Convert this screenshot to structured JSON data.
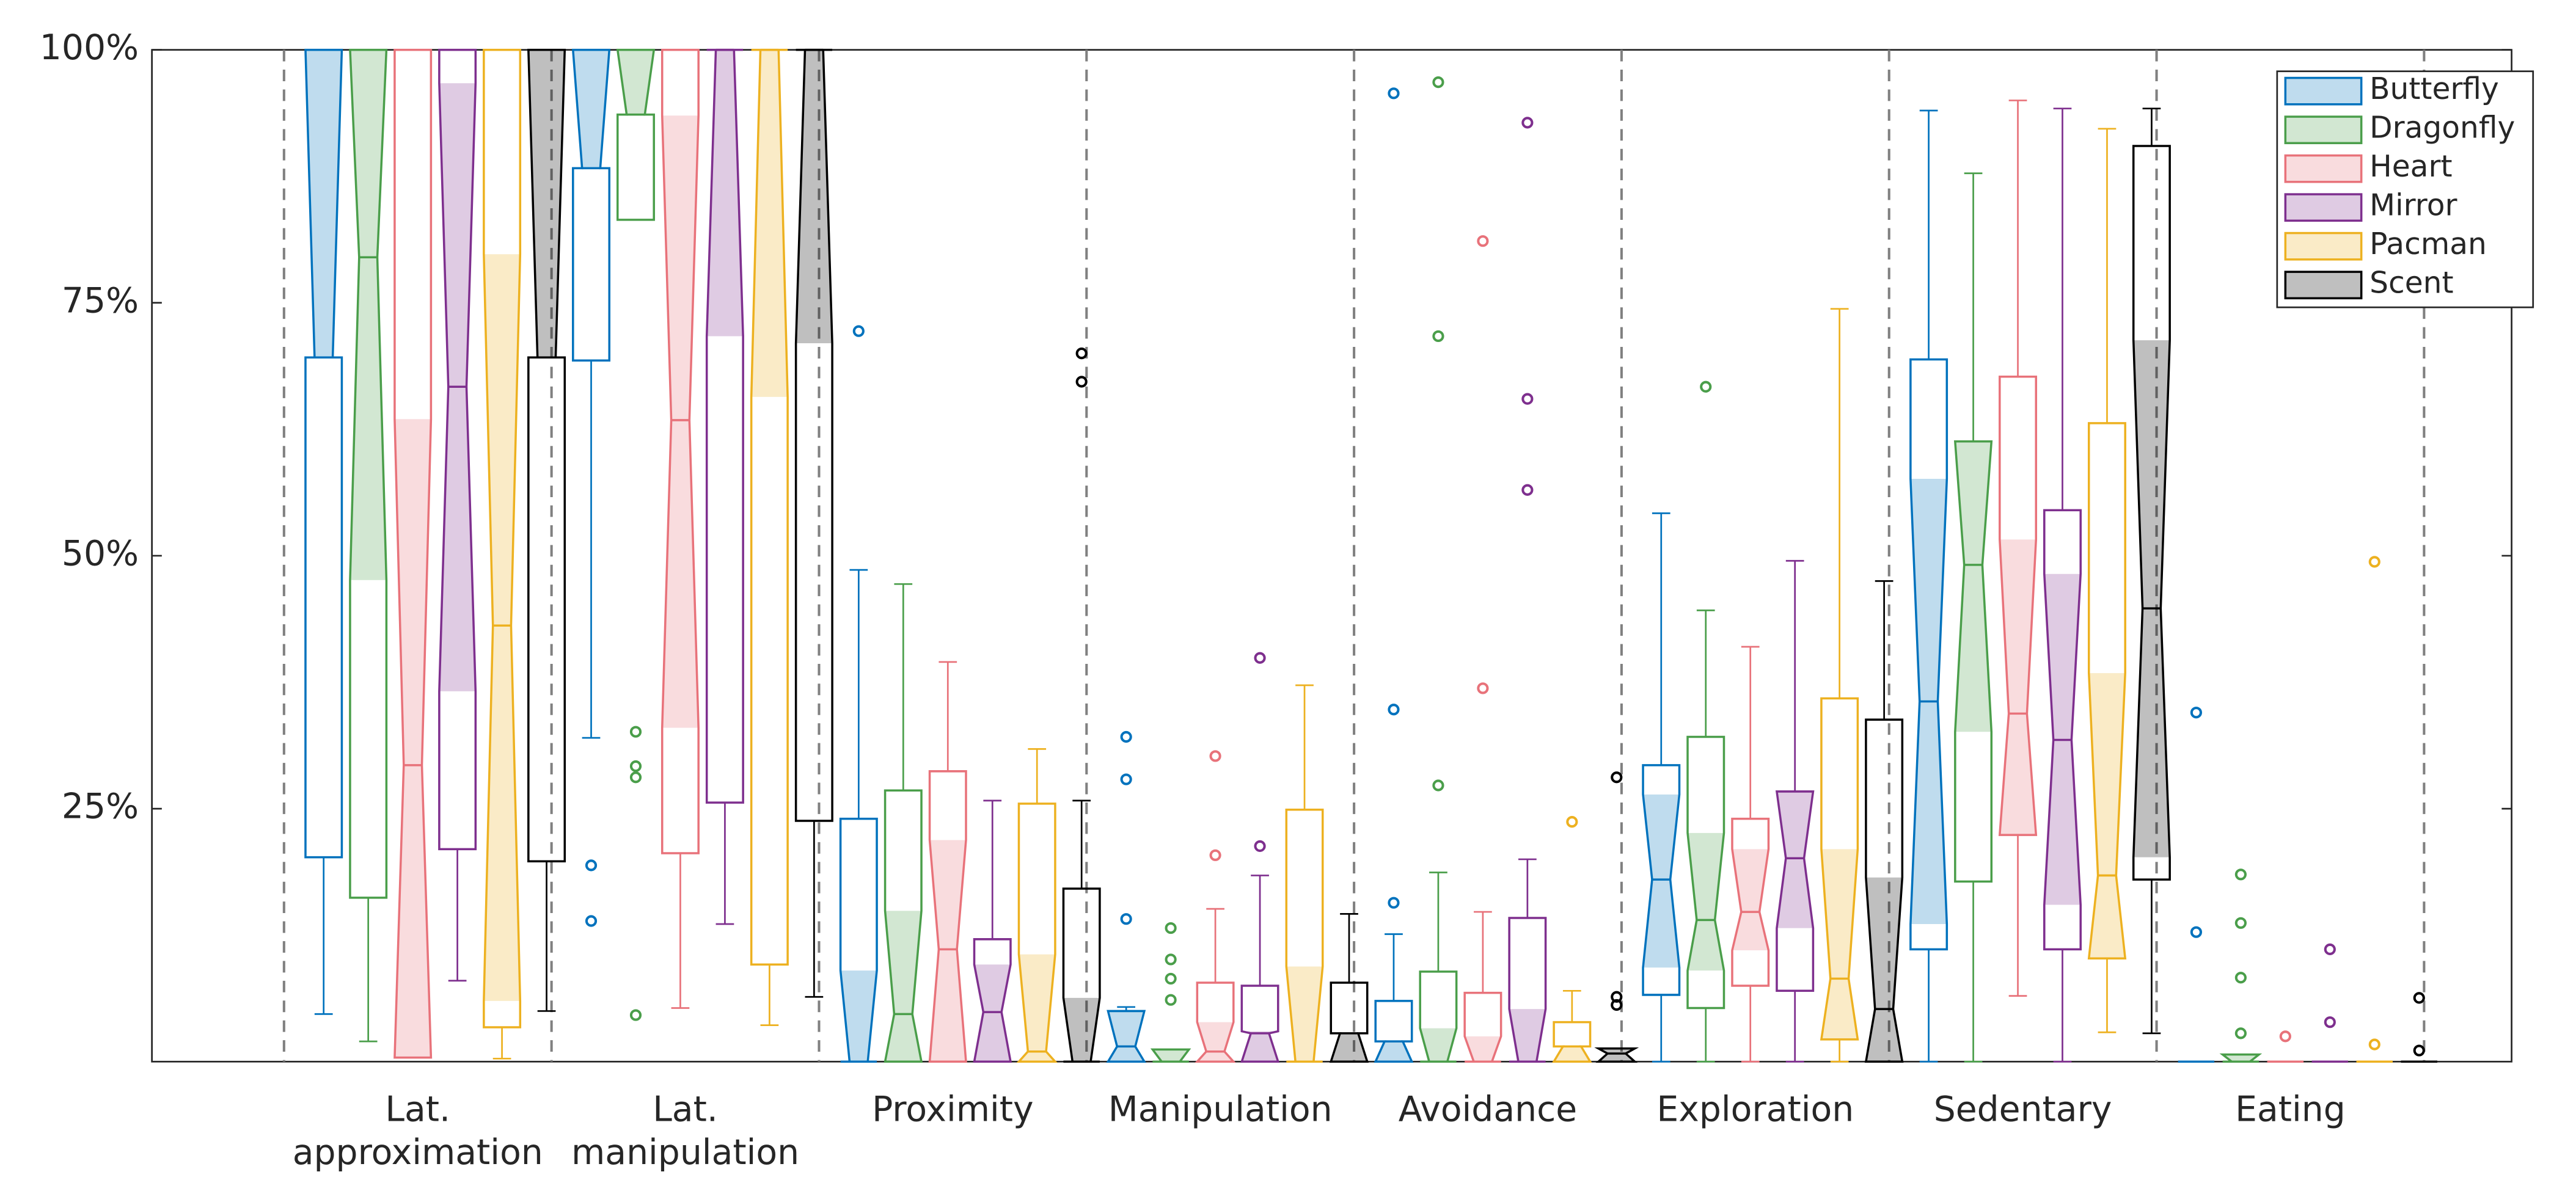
{
  "chart_data": {
    "type": "box",
    "categories": [
      "Lat. approximation",
      "Lat. manipulation",
      "Proximity",
      "Manipulation",
      "Avoidance",
      "Exploration",
      "Sedentary",
      "Eating"
    ],
    "ylim": [
      0,
      100
    ],
    "yticks": [
      {
        "value": 25,
        "label": "25%"
      },
      {
        "value": 50,
        "label": "50%"
      },
      {
        "value": 75,
        "label": "75%"
      },
      {
        "value": 100,
        "label": "100%"
      }
    ],
    "legend": "upper right",
    "series": [
      {
        "name": "Butterfly",
        "color": "#0072bd",
        "min": [
          4.7,
          32,
          0,
          0,
          0,
          0,
          0,
          0
        ],
        "q1": [
          20.2,
          69.3,
          0,
          0,
          0,
          6.6,
          11.1,
          0
        ],
        "median": [
          69.6,
          88.3,
          0,
          1.5,
          2,
          18,
          35.6,
          0
        ],
        "q3": [
          100,
          100,
          24,
          5,
          6,
          29.3,
          69.4,
          0
        ],
        "max": [
          100,
          100,
          48.6,
          5.4,
          12.6,
          54.2,
          94,
          0
        ],
        "notch_lo": [
          69.6,
          88.3,
          0,
          0,
          0,
          9.3,
          13.6,
          0
        ],
        "notch_hi": [
          100,
          100,
          9,
          5,
          2,
          26.4,
          57.6,
          0
        ],
        "outliers": [
          [],
          [
            19.4,
            13.9
          ],
          [
            72.2
          ],
          [
            32.1,
            27.9,
            14.1
          ],
          [
            95.7,
            34.8,
            15.7
          ],
          [],
          [],
          [
            34.5,
            12.8
          ]
        ]
      },
      {
        "name": "Dragonfly",
        "color": "#4a9e4a",
        "min": [
          2,
          83.2,
          0,
          0,
          0,
          0,
          0,
          0
        ],
        "q1": [
          16.2,
          83.2,
          0,
          0,
          0,
          5.3,
          17.8,
          0
        ],
        "median": [
          79.5,
          93.6,
          4.7,
          0,
          0,
          14,
          49.1,
          0
        ],
        "q3": [
          100,
          100,
          26.8,
          1.2,
          8.9,
          32.1,
          61.3,
          0.7
        ],
        "max": [
          100,
          100,
          47.2,
          1.2,
          18.7,
          44.6,
          87.8,
          0.7
        ],
        "notch_lo": [
          47.6,
          93.6,
          0,
          0,
          0,
          9,
          32.6,
          0
        ],
        "notch_hi": [
          100,
          100,
          14.9,
          1.2,
          3.3,
          22.6,
          65.6,
          0.7
        ],
        "outliers": [
          [],
          [
            32.6,
            29.2,
            28.1,
            4.6
          ],
          [],
          [
            13.2,
            10.1,
            8.2,
            6.1
          ],
          [
            96.8,
            71.7,
            27.3
          ],
          [
            66.7
          ],
          [],
          [
            18.5,
            13.7,
            8.3,
            2.8
          ]
        ]
      },
      {
        "name": "Heart",
        "color": "#e8727a",
        "min": [
          0.4,
          5.3,
          0,
          0,
          0,
          0,
          6.5,
          0
        ],
        "q1": [
          0.4,
          20.6,
          0,
          0,
          0,
          7.5,
          22.4,
          0
        ],
        "median": [
          29.3,
          63.4,
          11.1,
          1,
          0,
          14.8,
          34.4,
          0
        ],
        "q3": [
          100,
          100,
          28.7,
          7.8,
          6.8,
          24,
          67.7,
          0
        ],
        "max": [
          100,
          100,
          39.5,
          15.1,
          14.8,
          41,
          95,
          0
        ],
        "notch_lo": [
          0,
          33,
          0,
          0,
          0,
          11,
          17.1,
          0
        ],
        "notch_hi": [
          63.5,
          93.5,
          21.9,
          3.9,
          2.5,
          21,
          51.6,
          0
        ],
        "outliers": [
          [],
          [],
          [],
          [
            30.2,
            20.4
          ],
          [
            81.1,
            36.9
          ],
          [],
          [],
          [
            2.5
          ]
        ]
      },
      {
        "name": "Mirror",
        "color": "#7e2f8e",
        "min": [
          8,
          13.6,
          0,
          0,
          0,
          0,
          0,
          0
        ],
        "q1": [
          21,
          25.6,
          0,
          0,
          0,
          7,
          11.1,
          0
        ],
        "median": [
          66.7,
          100,
          4.9,
          2.8,
          0,
          20.1,
          31.8,
          0
        ],
        "q3": [
          100,
          100,
          12.1,
          7.5,
          14.2,
          26.7,
          54.5,
          0
        ],
        "max": [
          100,
          100,
          25.8,
          18.4,
          20,
          49.5,
          94.2,
          0
        ],
        "notch_lo": [
          36.6,
          71.7,
          0,
          0,
          0,
          13.2,
          15.5,
          0
        ],
        "notch_hi": [
          96.7,
          100,
          9.6,
          3,
          5.2,
          26.7,
          48.2,
          0
        ],
        "outliers": [
          [],
          [],
          [],
          [
            39.9,
            21.3
          ],
          [
            92.8,
            65.5,
            56.5
          ],
          [],
          [],
          [
            11.1,
            3.9
          ]
        ]
      },
      {
        "name": "Pacman",
        "color": "#edb120",
        "min": [
          0.3,
          3.6,
          0,
          0,
          0,
          0,
          2.9,
          0
        ],
        "q1": [
          3.4,
          9.6,
          0,
          0,
          0,
          2.2,
          10.2,
          0
        ],
        "median": [
          43.1,
          100,
          1,
          0,
          1.5,
          8.2,
          18.4,
          0
        ],
        "q3": [
          100,
          100,
          25.5,
          24.9,
          3.9,
          35.9,
          63.1,
          0
        ],
        "max": [
          100,
          100,
          30.9,
          37.2,
          7,
          74.4,
          92.2,
          0
        ],
        "notch_lo": [
          6,
          65.7,
          0,
          0,
          0,
          2.2,
          0,
          0
        ],
        "notch_hi": [
          79.8,
          100,
          10.6,
          9.4,
          1.5,
          21,
          38.4,
          0
        ],
        "outliers": [
          [],
          [],
          [],
          [],
          [
            23.7
          ],
          [],
          [],
          [
            49.4,
            1.7
          ]
        ]
      },
      {
        "name": "Scent",
        "color": "#000000",
        "min": [
          5,
          6.4,
          0,
          0,
          0,
          0,
          2.8,
          0
        ],
        "q1": [
          19.8,
          23.8,
          0,
          0,
          0,
          0,
          18,
          0
        ],
        "median": [
          69.6,
          100,
          0,
          2.8,
          0.8,
          5.2,
          44.8,
          0
        ],
        "q3": [
          100,
          100,
          17.1,
          7.8,
          1.3,
          33.8,
          90.5,
          0
        ],
        "max": [
          100,
          100,
          25.8,
          14.6,
          1.3,
          47.5,
          94.2,
          0
        ],
        "notch_lo": [
          69.6,
          71,
          0,
          0,
          0,
          0,
          20.2,
          0
        ],
        "notch_hi": [
          100,
          100,
          6.3,
          2.8,
          1.3,
          18.2,
          71.3,
          0
        ],
        "outliers": [
          [],
          [],
          [
            70,
            67.2
          ],
          [],
          [
            28.1,
            6.4,
            5.6
          ],
          [],
          [],
          [
            6.3,
            1.1
          ]
        ]
      }
    ]
  }
}
